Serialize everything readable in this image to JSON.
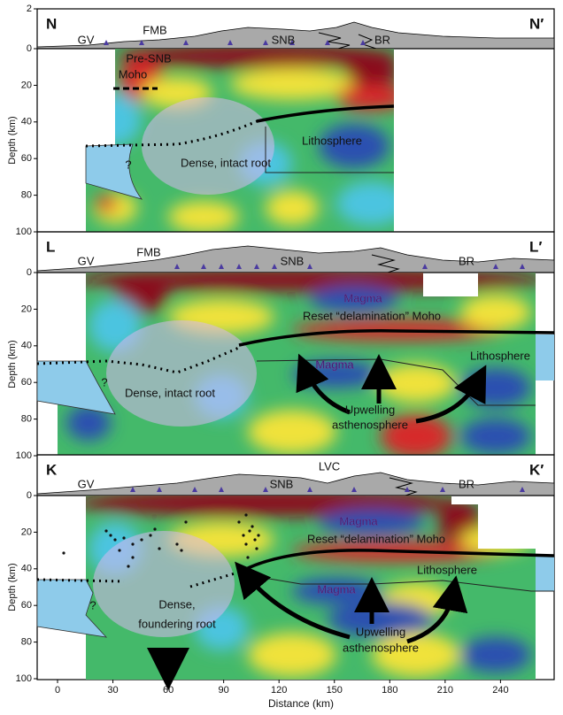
{
  "panels": [
    {
      "label_left": "N",
      "label_right": "N′",
      "y_label": "Depth (km)",
      "elevation_ticks": [
        2
      ],
      "depth_ticks": [
        0,
        20,
        40,
        60,
        80,
        100
      ],
      "places": [
        "GV",
        "FMB",
        "SNB",
        "BR"
      ],
      "annotations": [
        "Pre-SNB",
        "Moho",
        "Lithosphere",
        "Dense, intact root",
        "?"
      ]
    },
    {
      "label_left": "L",
      "label_right": "L′",
      "y_label": "Depth (km)",
      "depth_ticks": [
        0,
        20,
        40,
        60,
        80,
        100
      ],
      "places": [
        "GV",
        "FMB",
        "SNB",
        "BR"
      ],
      "annotations": [
        "Magma",
        "Reset “delamination” Moho",
        "Magma",
        "Lithosphere",
        "Dense, intact root",
        "Upwelling",
        "asthenosphere",
        "?"
      ]
    },
    {
      "label_left": "K",
      "label_right": "K′",
      "y_label": "Depth (km)",
      "depth_ticks": [
        0,
        20,
        40,
        60,
        80,
        100
      ],
      "places": [
        "GV",
        "LVC",
        "SNB",
        "BR"
      ],
      "annotations": [
        "Magma",
        "Reset “delamination” Moho",
        "Lithosphere",
        "Magma",
        "Dense,",
        "foundering root",
        "Upwelling",
        "asthenosphere",
        "?"
      ]
    }
  ],
  "x_label": "Distance (km)",
  "x_ticks": [
    0,
    30,
    60,
    90,
    120,
    150,
    180,
    210,
    240
  ]
}
